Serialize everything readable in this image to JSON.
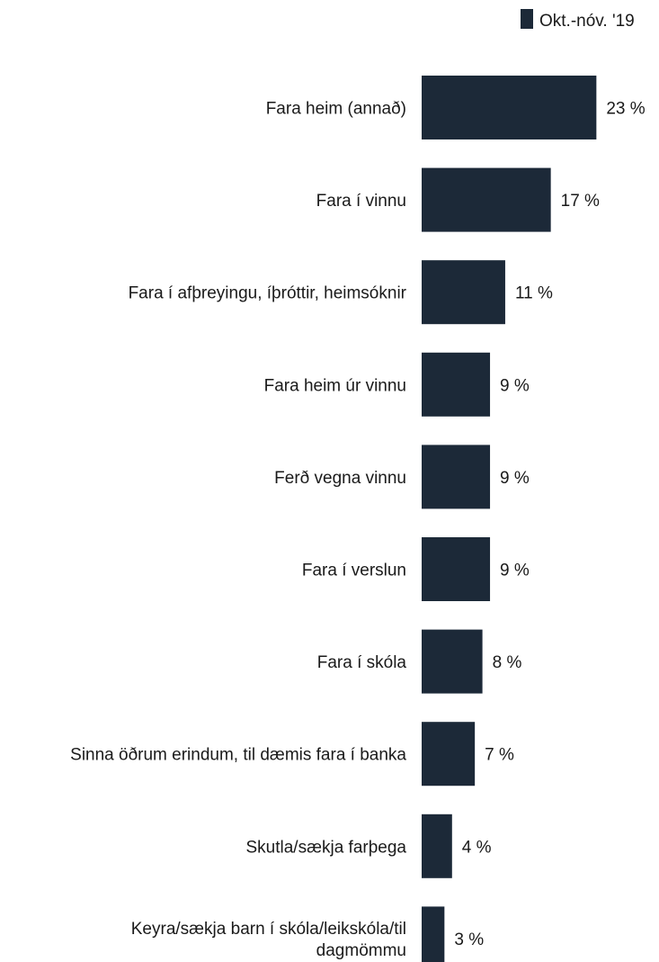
{
  "chart_data": {
    "type": "bar",
    "orientation": "horizontal",
    "categories": [
      [
        "Fara heim (annað)"
      ],
      [
        "Fara í vinnu"
      ],
      [
        "Fara í afþreyingu, íþróttir, heimsóknir"
      ],
      [
        "Fara heim úr vinnu"
      ],
      [
        "Ferð vegna vinnu"
      ],
      [
        "Fara í verslun"
      ],
      [
        "Fara í skóla"
      ],
      [
        "Sinna öðrum erindum, til dæmis fara í banka"
      ],
      [
        "Skutla/sækja farþega"
      ],
      [
        "Keyra/sækja barn í skóla/leikskóla/til",
        "dagmömmu"
      ]
    ],
    "series": [
      {
        "name": "Okt.-nóv. '19",
        "color": "#1c2938",
        "values": [
          23,
          17,
          11,
          9,
          9,
          9,
          8,
          7,
          4,
          3
        ],
        "labels": [
          "23 %",
          "17 %",
          "11 %",
          "9 %",
          "9 %",
          "9 %",
          "8 %",
          "7 %",
          "4 %",
          "3 %"
        ]
      }
    ],
    "legend_position": "top-right",
    "grid": false
  }
}
